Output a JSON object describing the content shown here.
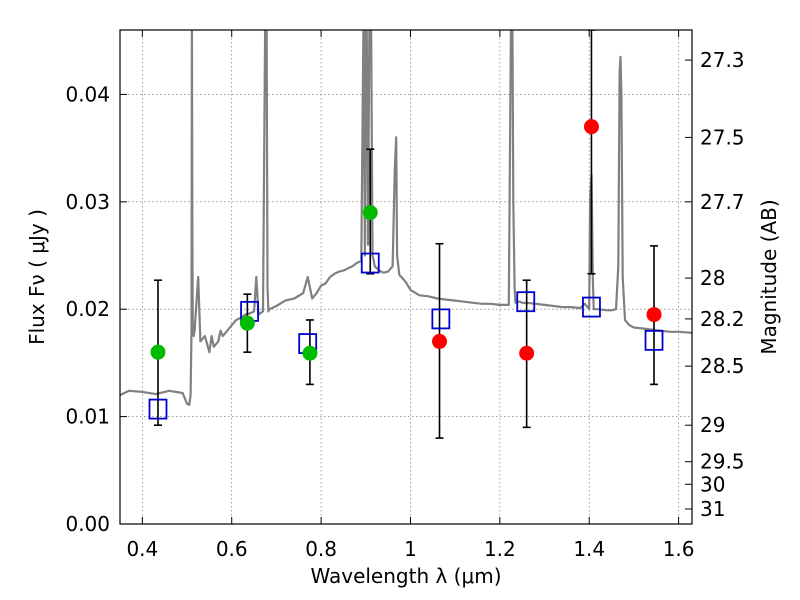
{
  "chart_data": {
    "type": "scatter",
    "xlabel": "Wavelength  λ (μm)",
    "ylabel": "Flux  Fν  ( μJy )",
    "y2label": "Magnitude (AB)",
    "xlim": [
      0.35,
      1.63
    ],
    "ylim": [
      0.0,
      0.046
    ],
    "grid": true,
    "x_ticks": [
      {
        "value": 0.4,
        "label": "0.4"
      },
      {
        "value": 0.6,
        "label": "0.6"
      },
      {
        "value": 0.8,
        "label": "0.8"
      },
      {
        "value": 1.0,
        "label": "1"
      },
      {
        "value": 1.2,
        "label": "1.2"
      },
      {
        "value": 1.4,
        "label": "1.4"
      },
      {
        "value": 1.6,
        "label": "1.6"
      }
    ],
    "y_ticks": [
      {
        "value": 0.0,
        "label": "0.00"
      },
      {
        "value": 0.01,
        "label": "0.01"
      },
      {
        "value": 0.02,
        "label": "0.02"
      },
      {
        "value": 0.03,
        "label": "0.03"
      },
      {
        "value": 0.04,
        "label": "0.04"
      }
    ],
    "y2_ticks": [
      {
        "flux": 0.0432,
        "label": "27.3"
      },
      {
        "flux": 0.036,
        "label": "27.5"
      },
      {
        "flux": 0.03,
        "label": "27.7"
      },
      {
        "flux": 0.0229,
        "label": "28"
      },
      {
        "flux": 0.0191,
        "label": "28.2"
      },
      {
        "flux": 0.0147,
        "label": "28.5"
      },
      {
        "flux": 0.0092,
        "label": "29"
      },
      {
        "flux": 0.0058,
        "label": "29.5"
      },
      {
        "flux": 0.0037,
        "label": "30"
      },
      {
        "flux": 0.0014,
        "label": "31"
      }
    ],
    "colors": {
      "spectrum": "#808080",
      "green": "#00bb00",
      "red": "#ff0000",
      "model_box": "#0000cc",
      "errorbar": "#000000"
    },
    "series": [
      {
        "role": "model-spectrum",
        "x": [
          0.35,
          0.37,
          0.4,
          0.43,
          0.46,
          0.49,
          0.5,
          0.505,
          0.508,
          0.51,
          0.511,
          0.512,
          0.513,
          0.515,
          0.517,
          0.52,
          0.525,
          0.53,
          0.54,
          0.55,
          0.555,
          0.56,
          0.57,
          0.575,
          0.58,
          0.59,
          0.6,
          0.61,
          0.62,
          0.63,
          0.64,
          0.65,
          0.655,
          0.66,
          0.67,
          0.675,
          0.678,
          0.68,
          0.682,
          0.684,
          0.69,
          0.7,
          0.72,
          0.74,
          0.76,
          0.77,
          0.78,
          0.79,
          0.8,
          0.81,
          0.82,
          0.83,
          0.84,
          0.85,
          0.86,
          0.87,
          0.88,
          0.89,
          0.895,
          0.898,
          0.9,
          0.902,
          0.905,
          0.908,
          0.912,
          0.915,
          0.918,
          0.92,
          0.925,
          0.93,
          0.94,
          0.95,
          0.96,
          0.965,
          0.968,
          0.97,
          0.975,
          0.98,
          0.99,
          1.0,
          1.02,
          1.04,
          1.06,
          1.08,
          1.1,
          1.12,
          1.14,
          1.16,
          1.18,
          1.2,
          1.22,
          1.225,
          1.228,
          1.23,
          1.233,
          1.235,
          1.24,
          1.245,
          1.25,
          1.26,
          1.28,
          1.3,
          1.32,
          1.34,
          1.36,
          1.38,
          1.39,
          1.4,
          1.402,
          1.405,
          1.408,
          1.41,
          1.42,
          1.44,
          1.45,
          1.46,
          1.465,
          1.468,
          1.47,
          1.472,
          1.475,
          1.48,
          1.49,
          1.5,
          1.52,
          1.54,
          1.56,
          1.58,
          1.6,
          1.63
        ],
        "y": [
          0.012,
          0.0124,
          0.0123,
          0.0121,
          0.0124,
          0.0122,
          0.0112,
          0.0111,
          0.012,
          0.018,
          0.047,
          0.026,
          0.018,
          0.0175,
          0.018,
          0.02,
          0.023,
          0.017,
          0.0175,
          0.016,
          0.0175,
          0.0165,
          0.017,
          0.018,
          0.0175,
          0.018,
          0.0185,
          0.019,
          0.0192,
          0.0195,
          0.0196,
          0.0198,
          0.023,
          0.0195,
          0.0198,
          0.047,
          0.047,
          0.022,
          0.0198,
          0.02,
          0.0201,
          0.0203,
          0.0208,
          0.021,
          0.0215,
          0.023,
          0.021,
          0.0215,
          0.0222,
          0.0224,
          0.023,
          0.0233,
          0.0235,
          0.0236,
          0.0238,
          0.024,
          0.0243,
          0.0245,
          0.047,
          0.025,
          0.047,
          0.047,
          0.026,
          0.047,
          0.047,
          0.025,
          0.0245,
          0.024,
          0.0238,
          0.0236,
          0.0234,
          0.0235,
          0.024,
          0.033,
          0.036,
          0.025,
          0.0232,
          0.023,
          0.0225,
          0.0218,
          0.0213,
          0.0212,
          0.021,
          0.0209,
          0.0208,
          0.0207,
          0.0206,
          0.0205,
          0.0205,
          0.0204,
          0.0204,
          0.047,
          0.047,
          0.03,
          0.022,
          0.0206,
          0.0207,
          0.0207,
          0.0206,
          0.0206,
          0.0205,
          0.0204,
          0.0203,
          0.0202,
          0.0202,
          0.0201,
          0.0205,
          0.02,
          0.03,
          0.0325,
          0.023,
          0.02,
          0.02,
          0.0199,
          0.0199,
          0.02,
          0.024,
          0.042,
          0.0435,
          0.04,
          0.023,
          0.019,
          0.0185,
          0.0183,
          0.0182,
          0.0181,
          0.018,
          0.0179,
          0.0179,
          0.0178
        ]
      },
      {
        "role": "observed-green",
        "x": [
          0.435,
          0.635,
          0.775,
          0.91
        ],
        "y": [
          0.016,
          0.0187,
          0.0159,
          0.029
        ],
        "yerr_low": [
          0.0092,
          0.016,
          0.013,
          0.0233
        ],
        "yerr_high": [
          0.0227,
          0.0214,
          0.019,
          0.0349
        ]
      },
      {
        "role": "observed-red",
        "x": [
          1.065,
          1.26,
          1.405,
          1.545
        ],
        "y": [
          0.017,
          0.0159,
          0.037,
          0.0195
        ],
        "yerr_low": [
          0.008,
          0.009,
          0.0233,
          0.013
        ],
        "yerr_high": [
          0.0261,
          0.0227,
          0.046,
          0.0259
        ]
      },
      {
        "role": "model-photometry",
        "x": [
          0.435,
          0.64,
          0.77,
          0.91,
          1.068,
          1.258,
          1.405,
          1.545
        ],
        "y": [
          0.0107,
          0.0198,
          0.0168,
          0.0243,
          0.0191,
          0.0207,
          0.0202,
          0.0171
        ]
      }
    ]
  }
}
